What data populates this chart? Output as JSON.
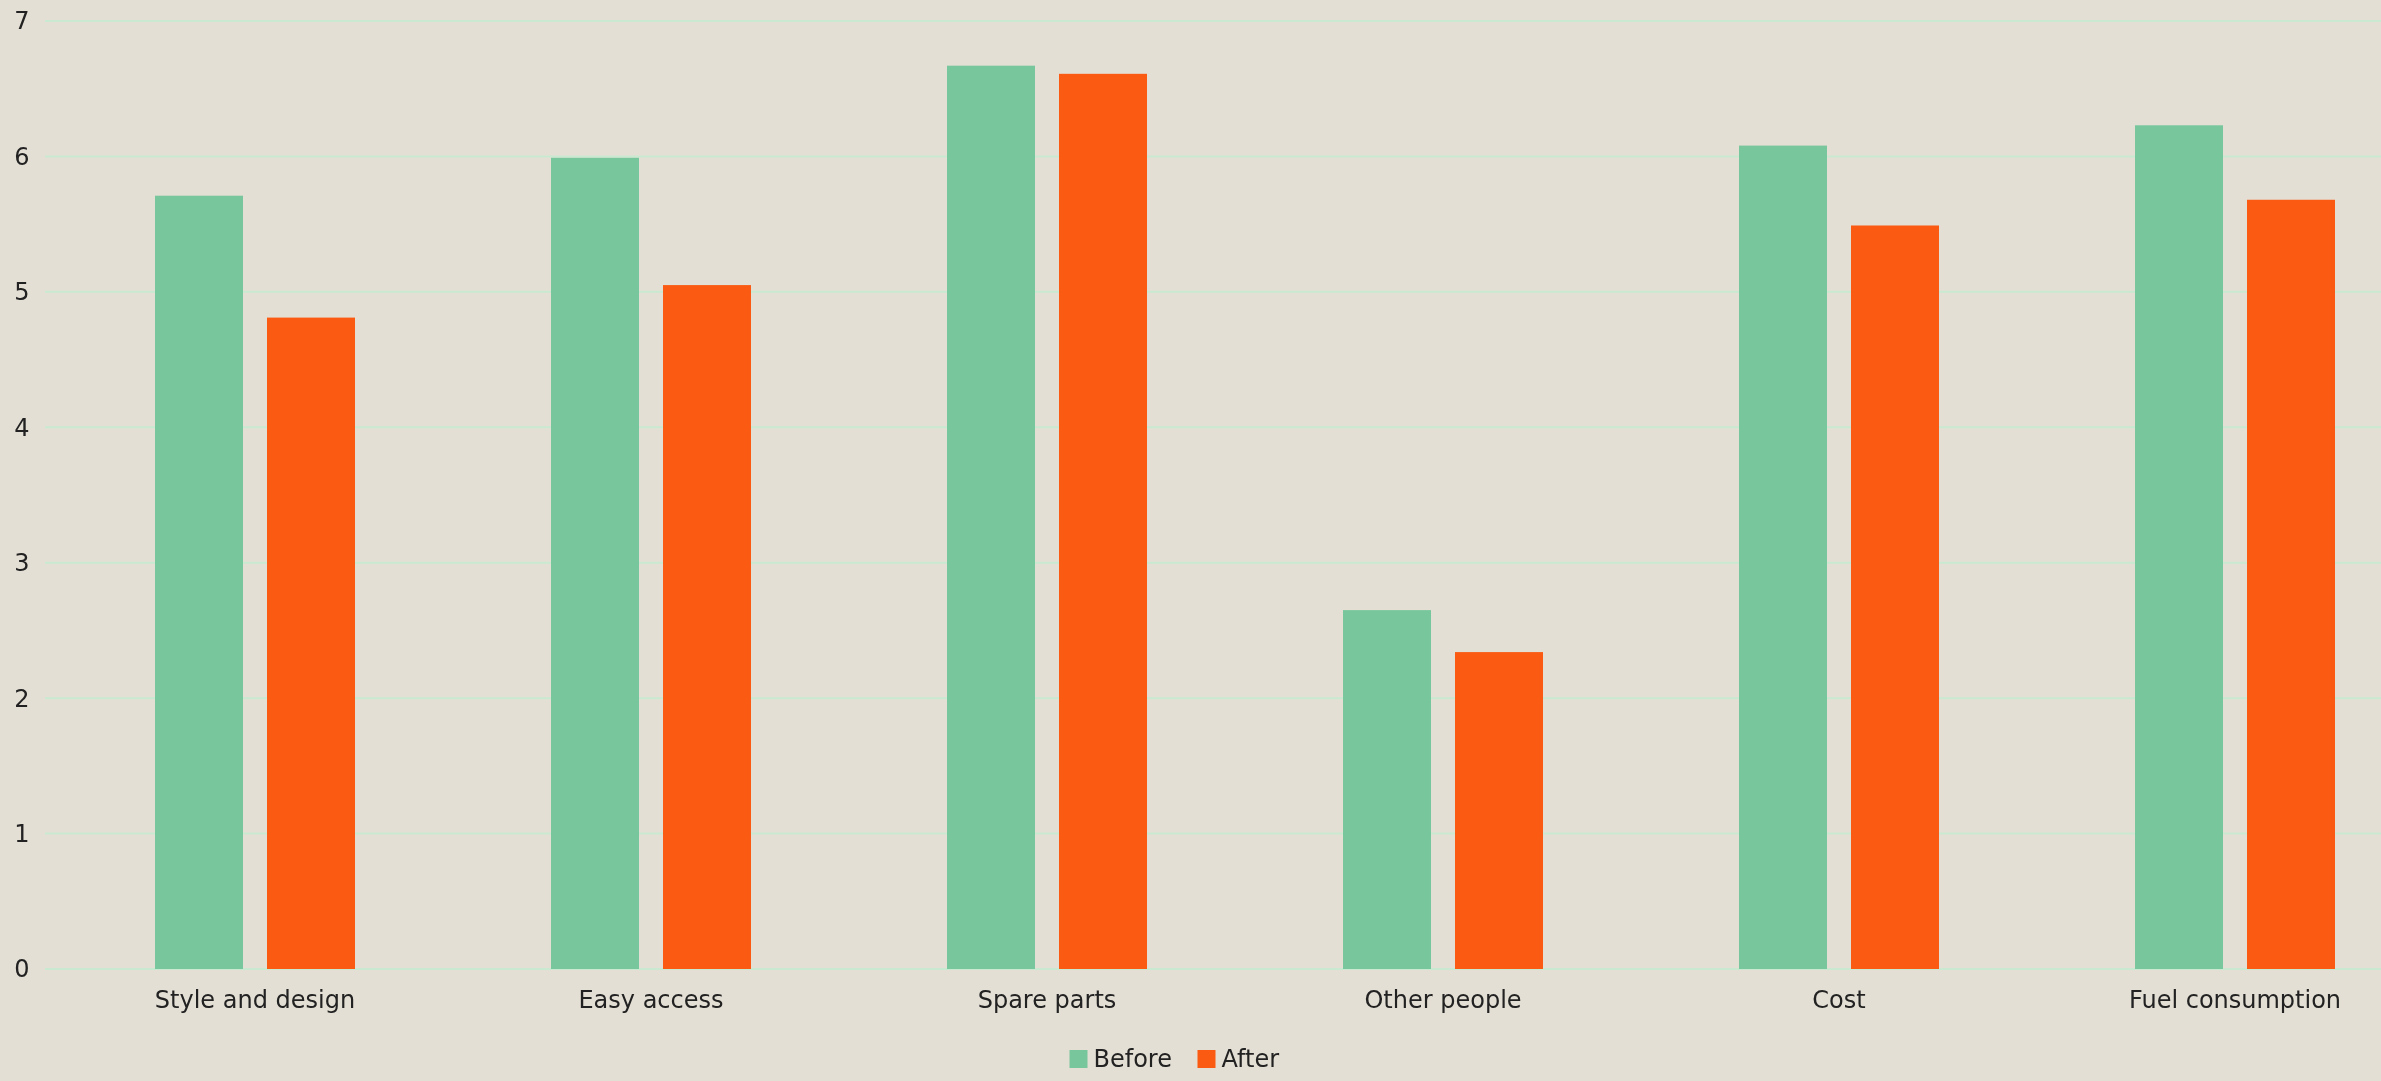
{
  "chart_data": {
    "type": "bar",
    "categories": [
      "Style and design",
      "Easy access",
      "Spare parts",
      "Other people",
      "Cost",
      "Fuel consumption"
    ],
    "series": [
      {
        "name": "Before",
        "color": "#78c69c",
        "values": [
          5.71,
          5.99,
          6.67,
          2.65,
          6.08,
          6.23
        ]
      },
      {
        "name": "After",
        "color": "#fa5a12",
        "values": [
          4.81,
          5.05,
          6.61,
          2.34,
          5.49,
          5.68
        ]
      }
    ],
    "ylim": [
      0,
      7
    ],
    "yticks": [
      0,
      1,
      2,
      3,
      4,
      5,
      6,
      7
    ],
    "grid": "y",
    "legend": "bottom"
  }
}
